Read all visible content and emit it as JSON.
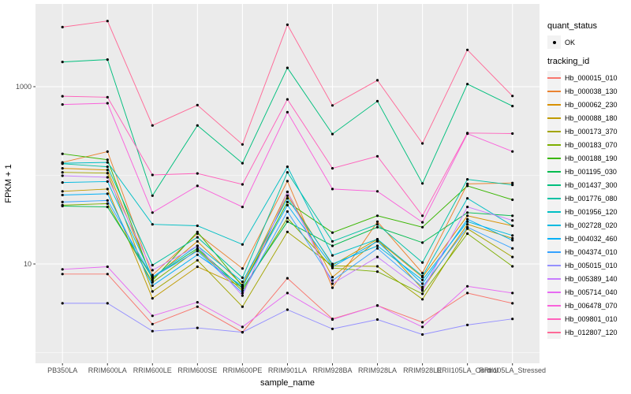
{
  "chart_data": {
    "type": "line",
    "title": "",
    "xlabel": "sample_name",
    "ylabel": "FPKM + 1",
    "y_scale": "log10",
    "x_categories": [
      "PB350LA",
      "RRIM600LA",
      "RRIM600LE",
      "RRIM600SE",
      "RRIM600PE",
      "RRIM901LA",
      "RRIM928BA",
      "RRIM928LA",
      "RRIM928LE",
      "RRII105LA_Control",
      "RRII105LA_Stressed"
    ],
    "y_axis_ticks": [
      {
        "label": "1000",
        "value": 1000
      },
      {
        "label": "10",
        "value": 10
      }
    ],
    "y_minor_gridlines": [
      1,
      100
    ],
    "legend": {
      "quant_status_title": "quant_status",
      "quant_status_items": [
        "OK"
      ],
      "tracking_id_title": "tracking_id"
    },
    "marker": {
      "shape": "point",
      "color": "#000000"
    },
    "series": [
      {
        "name": "Hb_000015_010",
        "color": "#F8766D",
        "values": [
          7.7,
          7.7,
          2.1,
          3.3,
          1.7,
          6.9,
          2.4,
          3.4,
          2.2,
          4.7,
          3.6
        ]
      },
      {
        "name": "Hb_000038_130",
        "color": "#EA8331",
        "values": [
          140,
          185,
          7.5,
          22,
          8.9,
          86,
          5.4,
          30,
          7.9,
          80,
          82
        ]
      },
      {
        "name": "Hb_000062_230",
        "color": "#D89000",
        "values": [
          120,
          115,
          6.8,
          18,
          5.8,
          65,
          7.1,
          18.5,
          7.1,
          35,
          27
        ]
      },
      {
        "name": "Hb_000088_180",
        "color": "#C09B00",
        "values": [
          66,
          70,
          4.1,
          9.3,
          5.5,
          59,
          9.7,
          19,
          5.2,
          28,
          19.5
        ]
      },
      {
        "name": "Hb_000173_370",
        "color": "#A3A500",
        "values": [
          108,
          106,
          4.9,
          11,
          3.3,
          23,
          9.5,
          9.4,
          4.0,
          25,
          12
        ]
      },
      {
        "name": "Hb_000183_070",
        "color": "#7CAE00",
        "values": [
          46,
          48,
          6.2,
          14.5,
          5.0,
          33,
          9.0,
          8.2,
          4.6,
          22,
          9.4
        ]
      },
      {
        "name": "Hb_000188_190",
        "color": "#39B600",
        "values": [
          175,
          150,
          6.5,
          23,
          5.6,
          50,
          22.6,
          35,
          26,
          76,
          53
        ]
      },
      {
        "name": "Hb_001195_030",
        "color": "#00BB4E",
        "values": [
          45,
          44,
          7.0,
          15,
          5.3,
          30,
          16,
          26,
          17.4,
          38,
          35
        ]
      },
      {
        "name": "Hb_001437_300",
        "color": "#00BF7D",
        "values": [
          1900,
          2020,
          59,
          365,
          137,
          1630,
          292,
          686,
          81,
          1070,
          605
        ]
      },
      {
        "name": "Hb_001776_080",
        "color": "#00C1A3",
        "values": [
          135,
          125,
          9.7,
          20,
          7.0,
          108,
          18,
          28,
          10.4,
          90,
          78
        ]
      },
      {
        "name": "Hb_001956_120",
        "color": "#00BFC4",
        "values": [
          137,
          140,
          28,
          27,
          16.6,
          125,
          12.5,
          19,
          7.3,
          55,
          27
        ]
      },
      {
        "name": "Hb_002728_020",
        "color": "#00BAE0",
        "values": [
          83,
          85,
          7.1,
          16,
          6.3,
          55,
          10,
          16,
          6.6,
          30,
          21
        ]
      },
      {
        "name": "Hb_004032_460",
        "color": "#00B0F6",
        "values": [
          60,
          62,
          5.7,
          12.7,
          5.6,
          46,
          9.3,
          18,
          6.0,
          32,
          18.5
        ]
      },
      {
        "name": "Hb_004374_010",
        "color": "#35A2FF",
        "values": [
          50,
          52,
          7.1,
          14,
          4.7,
          39,
          6.5,
          15,
          5.5,
          26,
          15
        ]
      },
      {
        "name": "Hb_005015_010",
        "color": "#9590FF",
        "values": [
          3.6,
          3.6,
          1.75,
          1.9,
          1.7,
          3.05,
          1.85,
          2.36,
          1.6,
          2.05,
          2.4
        ]
      },
      {
        "name": "Hb_005389_140",
        "color": "#C77CFF",
        "values": [
          99,
          95,
          8.5,
          16,
          4.4,
          65,
          6.0,
          12,
          5.0,
          44,
          31
        ]
      },
      {
        "name": "Hb_005714_040",
        "color": "#E76BF3",
        "values": [
          8.7,
          9.3,
          2.6,
          3.7,
          1.95,
          4.7,
          2.36,
          3.4,
          1.95,
          5.6,
          4.7
        ]
      },
      {
        "name": "Hb_006478_070",
        "color": "#FA62DB",
        "values": [
          630,
          650,
          38,
          76,
          44,
          515,
          70,
          66,
          29.5,
          295,
          186
        ]
      },
      {
        "name": "Hb_009801_010",
        "color": "#FF62BC",
        "values": [
          780,
          760,
          101,
          105,
          79,
          720,
          120,
          164,
          35,
          300,
          296
        ]
      },
      {
        "name": "Hb_012807_120",
        "color": "#FF6A98",
        "values": [
          4700,
          5500,
          365,
          620,
          223,
          5000,
          615,
          1180,
          229,
          2600,
          785
        ]
      }
    ]
  },
  "colors": {
    "panel_background": "#EBEBEB",
    "gridline": "#FFFFFF",
    "axis_text": "#4D4D4D",
    "tick_mark": "#333333",
    "legend_key_background": "#F2F2F2"
  }
}
